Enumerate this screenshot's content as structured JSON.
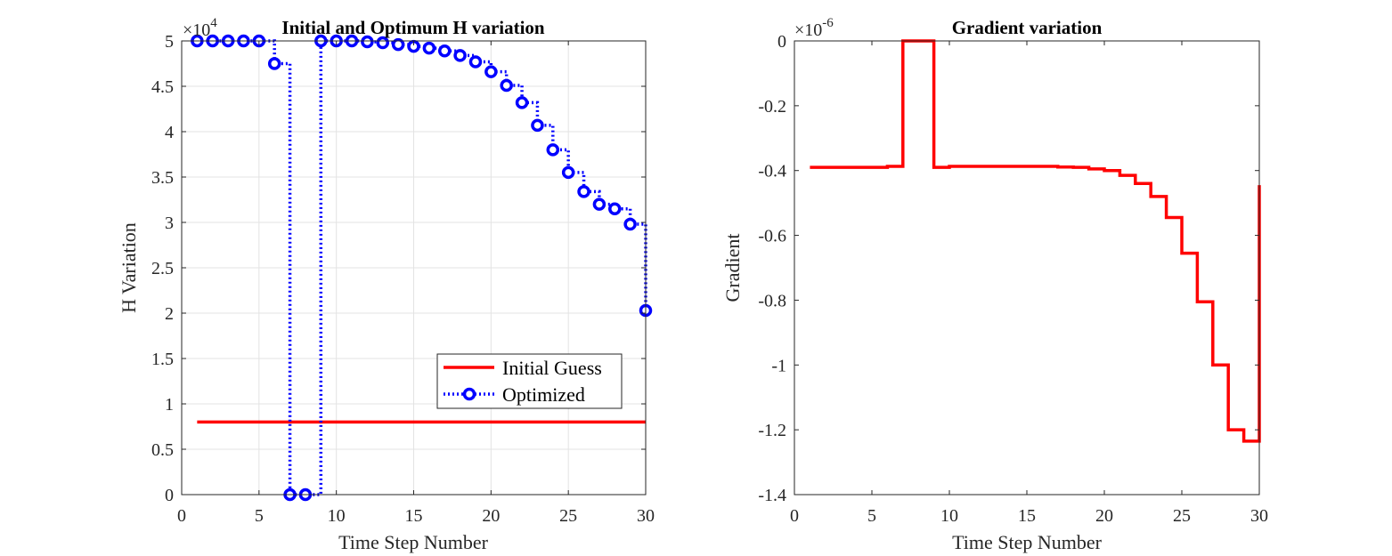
{
  "charts": [
    {
      "title": "Initial and Optimum H variation",
      "xlabel": "Time Step Number",
      "ylabel": "H Variation",
      "y_multiplier": "×10",
      "y_exponent": "4",
      "xticks": [
        "0",
        "5",
        "10",
        "15",
        "20",
        "25",
        "30"
      ],
      "yticks": [
        "0",
        "0.5",
        "1",
        "1.5",
        "2",
        "2.5",
        "3",
        "3.5",
        "4",
        "4.5",
        "5"
      ],
      "legend": {
        "labels": [
          "Initial Guess",
          "Optimized"
        ]
      }
    },
    {
      "title": "Gradient variation",
      "xlabel": "Time Step Number",
      "ylabel": "Gradient",
      "y_multiplier": "×10",
      "y_exponent": "-6",
      "xticks": [
        "0",
        "5",
        "10",
        "15",
        "20",
        "25",
        "30"
      ],
      "yticks": [
        "0",
        "-0.2",
        "-0.4",
        "-0.6",
        "-0.8",
        "-1",
        "-1.2",
        "-1.4"
      ]
    }
  ],
  "chart_data": [
    {
      "type": "line",
      "title": "Initial and Optimum H variation",
      "xlabel": "Time Step Number",
      "ylabel": "H Variation",
      "xlim": [
        0,
        30
      ],
      "ylim": [
        0,
        50000
      ],
      "grid": true,
      "legend_position": "bottom-right",
      "series": [
        {
          "name": "Initial Guess",
          "style": "stairs-solid",
          "color": "#ff0000",
          "x": [
            1,
            30
          ],
          "y": [
            8000,
            8000
          ]
        },
        {
          "name": "Optimized",
          "style": "stairs-dotted-circle-markers",
          "color": "#0000ff",
          "x": [
            1,
            2,
            3,
            4,
            5,
            6,
            7,
            8,
            9,
            10,
            11,
            12,
            13,
            14,
            15,
            16,
            17,
            18,
            19,
            20,
            21,
            22,
            23,
            24,
            25,
            26,
            27,
            28,
            29,
            30
          ],
          "y": [
            50000,
            50000,
            50000,
            50000,
            50000,
            47500,
            0,
            0,
            50000,
            50000,
            50000,
            49900,
            49800,
            49600,
            49400,
            49200,
            48900,
            48400,
            47700,
            46600,
            45100,
            43200,
            40700,
            38000,
            35500,
            33400,
            32000,
            31500,
            29800,
            20300
          ]
        }
      ]
    },
    {
      "type": "line",
      "title": "Gradient variation",
      "xlabel": "Time Step Number",
      "ylabel": "Gradient",
      "xlim": [
        0,
        30
      ],
      "ylim": [
        -1.4,
        0
      ],
      "y_scale_factor": "1e-6",
      "grid": false,
      "series": [
        {
          "style": "stairs-solid",
          "color": "#ff0000",
          "x": [
            1,
            2,
            3,
            4,
            5,
            6,
            7,
            8,
            9,
            10,
            11,
            12,
            13,
            14,
            15,
            16,
            17,
            18,
            19,
            20,
            21,
            22,
            23,
            24,
            25,
            26,
            27,
            28,
            29,
            30
          ],
          "y": [
            -0.39,
            -0.39,
            -0.39,
            -0.39,
            -0.39,
            -0.387,
            0,
            0,
            -0.39,
            -0.387,
            -0.387,
            -0.387,
            -0.387,
            -0.387,
            -0.387,
            -0.387,
            -0.389,
            -0.39,
            -0.395,
            -0.4,
            -0.415,
            -0.44,
            -0.48,
            -0.545,
            -0.655,
            -0.805,
            -1.0,
            -1.2,
            -1.235,
            -0.445
          ]
        }
      ]
    }
  ]
}
